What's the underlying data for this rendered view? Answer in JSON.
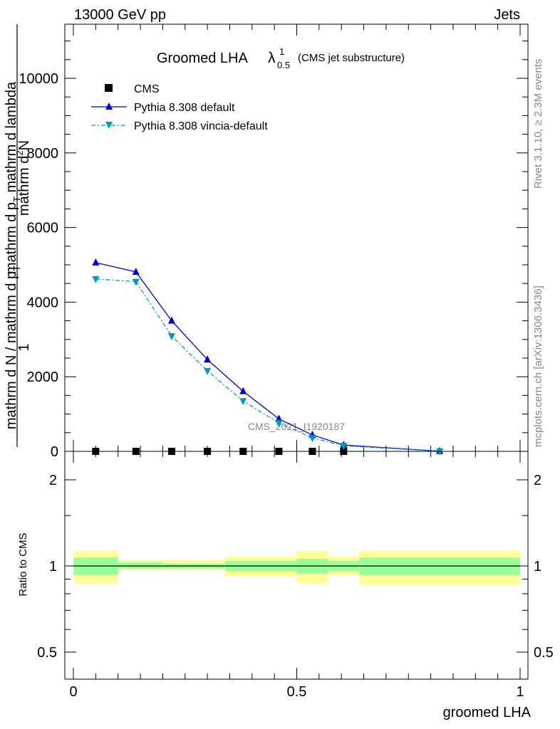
{
  "header": {
    "energy": "13000 GeV pp",
    "category": "Jets"
  },
  "side_labels": {
    "rivet": "Rivet 3.1.10, ≥ 2.3M events",
    "mcplots": "mcplots.cern.ch [arXiv:1306.3436]"
  },
  "colors": {
    "cms": "#000000",
    "pythia_default": "#0000cc",
    "pythia_vincia": "#0099bb",
    "band_inner": "#99ff99",
    "band_outer": "#ffff99"
  },
  "chart_data": [
    {
      "type": "line",
      "title": "Groomed LHA",
      "title_symbol": "λ",
      "title_superscript": "1",
      "title_subscript": "0.5",
      "title_note": "(CMS jet substructure)",
      "watermark": "CMS_2021_I1920187",
      "ylabel_numerator_top": "mathrm d",
      "ylabel_numerator_sup": "2",
      "ylabel_numerator_rest": "N",
      "ylabel_denominator": "mathrm d p",
      "ylabel_denominator_sub": "T",
      "ylabel_denominator_rest": " mathrm d lambda",
      "ylabel_prefix_num": "1",
      "ylabel_prefix_den": "mathrm d N / mathrm d p",
      "ylabel_prefix_den_sub": "T",
      "xlim": [
        0,
        1
      ],
      "ylim": [
        0,
        11500
      ],
      "yticks": [
        0,
        2000,
        4000,
        6000,
        8000,
        10000
      ],
      "ytick_labels": [
        "0",
        "2000",
        "4000",
        "6000",
        "8000",
        "10000"
      ],
      "legend": [
        "CMS",
        "Pythia 8.308 default",
        "Pythia 8.308 vincia-default"
      ],
      "series": [
        {
          "name": "CMS",
          "x": [
            0.05,
            0.14,
            0.22,
            0.3,
            0.38,
            0.46,
            0.535,
            0.605
          ],
          "y": [
            0,
            0,
            0,
            0,
            0,
            0,
            0,
            0
          ]
        },
        {
          "name": "Pythia 8.308 default",
          "x": [
            0.05,
            0.14,
            0.22,
            0.3,
            0.38,
            0.46,
            0.535,
            0.605,
            0.82
          ],
          "y": [
            5060,
            4810,
            3500,
            2460,
            1610,
            870,
            440,
            170,
            5
          ]
        },
        {
          "name": "Pythia 8.308 vincia-default",
          "x": [
            0.05,
            0.14,
            0.22,
            0.3,
            0.38,
            0.46,
            0.535,
            0.605,
            0.82
          ],
          "y": [
            4620,
            4550,
            3090,
            2160,
            1350,
            760,
            360,
            150,
            5
          ]
        }
      ]
    },
    {
      "type": "area",
      "ylabel": "Ratio to CMS",
      "xlabel": "groomed LHA",
      "xlim": [
        0,
        1
      ],
      "ylim": [
        0.35,
        2.3
      ],
      "yticks": [
        0.5,
        1,
        2
      ],
      "ytick_labels": [
        "0.5",
        "1",
        "2"
      ],
      "xticks": [
        0,
        0.5,
        1
      ],
      "xtick_labels": [
        "0",
        "0.5",
        "1"
      ],
      "bins": [
        {
          "x0": 0.0,
          "x1": 0.1,
          "inner": [
            0.93,
            1.07
          ],
          "outer": [
            0.87,
            1.13
          ]
        },
        {
          "x0": 0.1,
          "x1": 0.2,
          "inner": [
            0.98,
            1.03
          ],
          "outer": [
            0.97,
            1.05
          ]
        },
        {
          "x0": 0.2,
          "x1": 0.34,
          "inner": [
            0.98,
            1.02
          ],
          "outer": [
            0.97,
            1.05
          ]
        },
        {
          "x0": 0.34,
          "x1": 0.5,
          "inner": [
            0.96,
            1.04
          ],
          "outer": [
            0.92,
            1.08
          ]
        },
        {
          "x0": 0.5,
          "x1": 0.57,
          "inner": [
            0.94,
            1.06
          ],
          "outer": [
            0.87,
            1.13
          ]
        },
        {
          "x0": 0.57,
          "x1": 0.64,
          "inner": [
            0.96,
            1.04
          ],
          "outer": [
            0.93,
            1.08
          ]
        },
        {
          "x0": 0.64,
          "x1": 1.0,
          "inner": [
            0.93,
            1.07
          ],
          "outer": [
            0.86,
            1.13
          ]
        }
      ],
      "reference": 1
    }
  ]
}
